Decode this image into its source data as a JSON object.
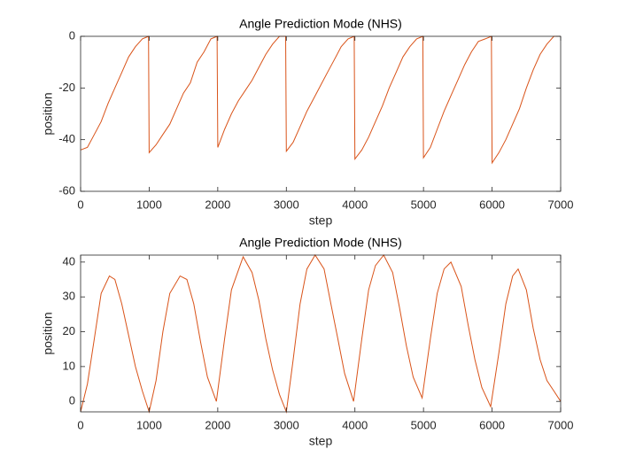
{
  "chart_data": [
    {
      "type": "line",
      "title": "Angle Prediction Mode (NHS)",
      "x_label": "step",
      "y_label": "position",
      "color": "#d95319",
      "xlim": [
        0,
        7000
      ],
      "xticks": [
        0,
        1000,
        2000,
        3000,
        4000,
        5000,
        6000,
        7000
      ],
      "ylim": [
        -60,
        0
      ],
      "yticks": [
        -60,
        -40,
        -20,
        0
      ],
      "x": [
        0,
        100,
        200,
        300,
        400,
        500,
        600,
        700,
        800,
        900,
        990,
        1000,
        1100,
        1200,
        1300,
        1400,
        1500,
        1600,
        1700,
        1800,
        1900,
        1990,
        2000,
        2100,
        2200,
        2300,
        2400,
        2500,
        2600,
        2700,
        2800,
        2900,
        2990,
        3000,
        3100,
        3200,
        3300,
        3400,
        3500,
        3600,
        3700,
        3800,
        3900,
        3990,
        4000,
        4100,
        4200,
        4300,
        4400,
        4500,
        4600,
        4700,
        4800,
        4900,
        4990,
        5000,
        5100,
        5200,
        5300,
        5400,
        5500,
        5600,
        5700,
        5800,
        5900,
        5990,
        6000,
        6100,
        6200,
        6300,
        6400,
        6500,
        6600,
        6700,
        6800,
        6900,
        7000
      ],
      "values": [
        -44,
        -43,
        -38,
        -33,
        -26,
        -20,
        -14,
        -8,
        -4,
        -1,
        0,
        -45,
        -42,
        -38,
        -34,
        -28,
        -22,
        -18,
        -10,
        -6,
        -1,
        0,
        -43,
        -36,
        -30,
        -25,
        -21,
        -17,
        -12,
        -7,
        -3,
        0,
        0,
        -44.5,
        -41,
        -35,
        -29,
        -24,
        -19,
        -14,
        -9,
        -4,
        -1,
        0,
        -47.5,
        -44,
        -39,
        -33,
        -27,
        -20,
        -14,
        -8,
        -4,
        -1,
        0,
        -47,
        -43,
        -36,
        -29,
        -23,
        -17,
        -11,
        -6,
        -2,
        -1,
        0,
        -49,
        -45,
        -40,
        -34,
        -28,
        -20,
        -13,
        -7,
        -3,
        0,
        0
      ]
    },
    {
      "type": "line",
      "title": "Angle Prediction Mode (NHS)",
      "x_label": "step",
      "y_label": "position",
      "color": "#d95319",
      "xlim": [
        0,
        7000
      ],
      "xticks": [
        0,
        1000,
        2000,
        3000,
        4000,
        5000,
        6000,
        7000
      ],
      "ylim": [
        -3,
        42
      ],
      "yticks": [
        0,
        10,
        20,
        30,
        40
      ],
      "x": [
        0,
        100,
        200,
        300,
        420,
        500,
        600,
        700,
        800,
        900,
        1000,
        1100,
        1200,
        1300,
        1450,
        1550,
        1650,
        1750,
        1850,
        1980,
        2100,
        2200,
        2370,
        2500,
        2600,
        2700,
        2800,
        2900,
        3000,
        3100,
        3200,
        3300,
        3420,
        3550,
        3650,
        3750,
        3850,
        3980,
        4100,
        4200,
        4300,
        4420,
        4550,
        4650,
        4750,
        4850,
        4980,
        5100,
        5200,
        5300,
        5400,
        5550,
        5650,
        5750,
        5850,
        5980,
        6100,
        6200,
        6300,
        6380,
        6500,
        6600,
        6700,
        6800,
        6900,
        7000
      ],
      "values": [
        -3,
        5,
        18,
        31,
        36,
        35,
        28,
        19,
        10,
        3,
        -3,
        6,
        20,
        31,
        36,
        35,
        28,
        17,
        7,
        0,
        18,
        32,
        41.5,
        37,
        29,
        18,
        9,
        2,
        -3,
        12,
        28,
        38,
        42,
        38,
        28,
        18,
        8,
        0,
        18,
        32,
        39,
        42,
        37,
        27,
        16,
        7,
        1,
        18,
        31,
        38,
        40,
        33,
        22,
        12,
        4,
        -1.5,
        14,
        28,
        36,
        38,
        32,
        21,
        12,
        6,
        3,
        0
      ]
    }
  ]
}
